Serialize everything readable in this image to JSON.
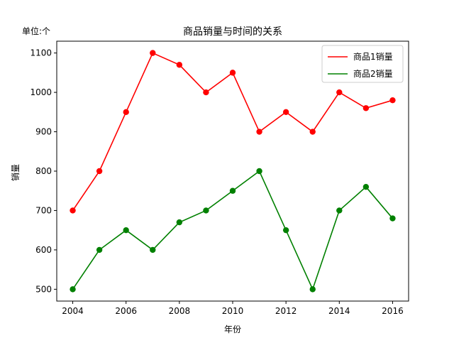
{
  "chart_data": {
    "type": "line",
    "title": "商品销量与时间的关系",
    "xlabel": "年份",
    "ylabel": "销量",
    "unit_note": "单位:个",
    "x": [
      2004,
      2005,
      2006,
      2007,
      2008,
      2009,
      2010,
      2011,
      2012,
      2013,
      2014,
      2015,
      2016
    ],
    "x_ticks": [
      2004,
      2006,
      2008,
      2010,
      2012,
      2014,
      2016
    ],
    "y_ticks": [
      500,
      600,
      700,
      800,
      900,
      1000,
      1100
    ],
    "xlim": [
      2003.4,
      2016.6
    ],
    "ylim": [
      470,
      1130
    ],
    "grid": false,
    "legend_position": "top-right",
    "series": [
      {
        "name": "商品1销量",
        "color": "#ff0000",
        "values": [
          700,
          800,
          950,
          1100,
          1070,
          1000,
          1050,
          900,
          950,
          900,
          1000,
          960,
          980
        ]
      },
      {
        "name": "商品2销量",
        "color": "#008000",
        "values": [
          500,
          600,
          650,
          600,
          670,
          700,
          750,
          800,
          650,
          500,
          700,
          760,
          680
        ]
      }
    ]
  }
}
